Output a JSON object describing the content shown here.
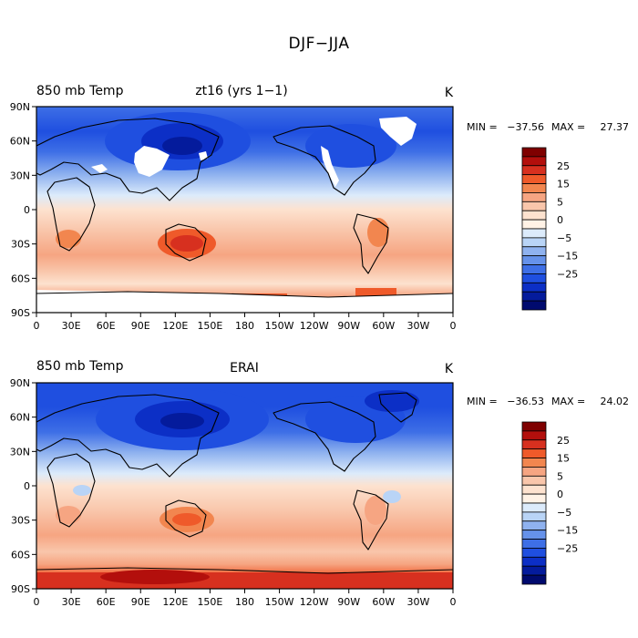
{
  "figure": {
    "title": "DJF−JJA"
  },
  "panels": [
    {
      "id": "model",
      "left_label": "850 mb Temp",
      "center_label": "zt16 (yrs 1−1)",
      "units": "K",
      "stats": {
        "min_label": "MIN =",
        "min": "−37.56",
        "max_label": "MAX =",
        "max": "27.37"
      }
    },
    {
      "id": "erai",
      "left_label": "850 mb Temp",
      "center_label": "ERAI",
      "units": "K",
      "stats": {
        "min_label": "MIN =",
        "min": "−36.53",
        "max_label": "MAX =",
        "max": "24.02"
      }
    }
  ],
  "axes": {
    "lat_ticks": [
      "90N",
      "60N",
      "30N",
      "0",
      "30S",
      "60S",
      "90S"
    ],
    "lon_ticks": [
      "0",
      "30E",
      "60E",
      "90E",
      "120E",
      "150E",
      "180",
      "150W",
      "120W",
      "90W",
      "60W",
      "30W",
      "0"
    ]
  },
  "colorbar": {
    "levels": [
      "25",
      "15",
      "5",
      "0",
      "−5",
      "−15",
      "−25"
    ],
    "colors_top_to_bottom": [
      "#7f0000",
      "#b30f0c",
      "#d7301f",
      "#ef5a2a",
      "#f2864f",
      "#f6a582",
      "#f9c6ab",
      "#fde2cf",
      "#fff2e6",
      "#dcebfb",
      "#b9d4f6",
      "#8fb2ef",
      "#6692ea",
      "#3e6fe6",
      "#1f4fe0",
      "#0c2fc6",
      "#041b9c",
      "#000a6e"
    ]
  },
  "icons": [
    "globe-map-icon"
  ]
}
